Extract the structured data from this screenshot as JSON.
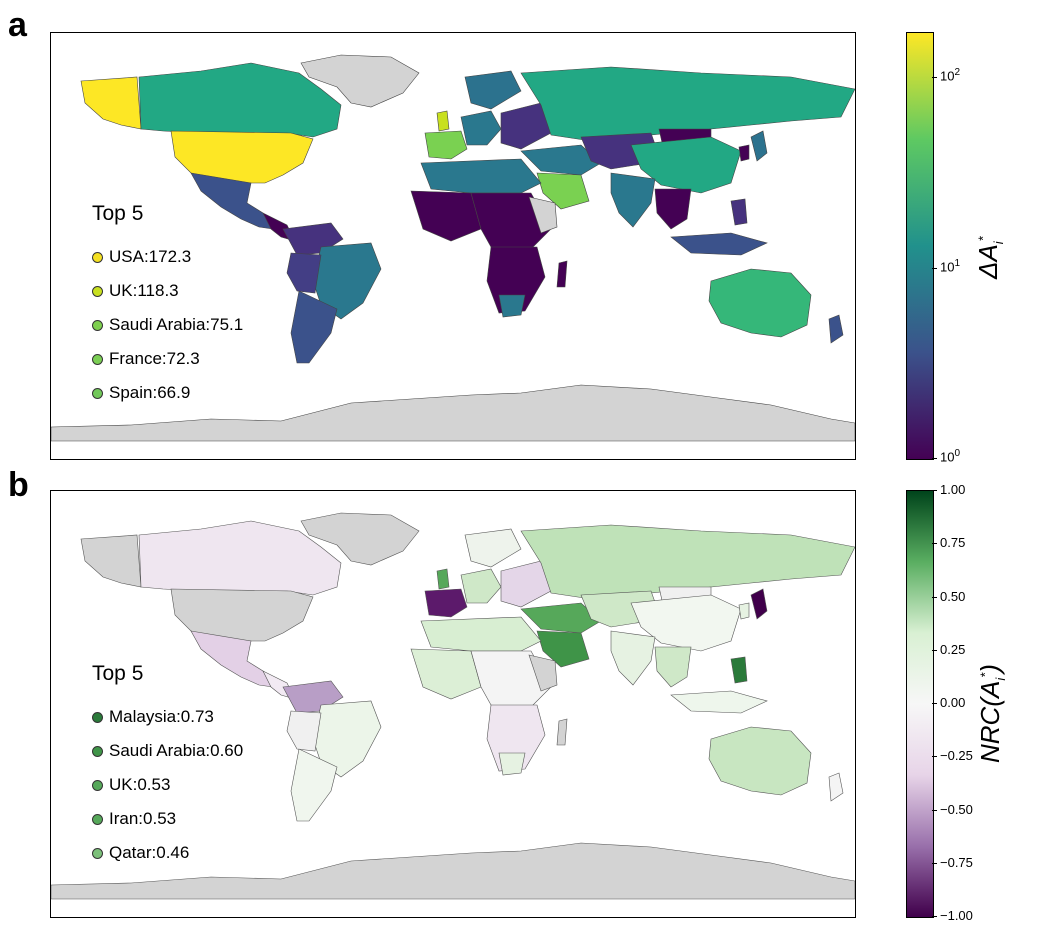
{
  "panels": {
    "a": {
      "letter": "a",
      "legend_title": "Top 5",
      "top5": [
        {
          "label": "USA:172.3",
          "color": "#f4e022"
        },
        {
          "label": "UK:118.3",
          "color": "#c8e020"
        },
        {
          "label": "Saudi Arabia:75.1",
          "color": "#7ecf4f"
        },
        {
          "label": "France:72.3",
          "color": "#7bce54"
        },
        {
          "label": "Spain:66.9",
          "color": "#72c85a"
        }
      ],
      "colorbar": {
        "label_main": "ΔA",
        "label_sub": "i",
        "label_sup": "*",
        "scale": "log",
        "range": [
          1,
          172.3
        ],
        "ticks": [
          {
            "base": "10",
            "exp": "0"
          },
          {
            "base": "10",
            "exp": "1"
          },
          {
            "base": "10",
            "exp": "2"
          }
        ],
        "colormap": "viridis",
        "colors": [
          "#440154",
          "#3b528b",
          "#21918c",
          "#5ec962",
          "#fde725"
        ]
      }
    },
    "b": {
      "letter": "b",
      "legend_title": "Top 5",
      "top5": [
        {
          "label": "Malaysia:0.73",
          "color": "#2a7a3a"
        },
        {
          "label": "Saudi Arabia:0.60",
          "color": "#3f9448"
        },
        {
          "label": "UK:0.53",
          "color": "#56a85a"
        },
        {
          "label": "Iran:0.53",
          "color": "#56a85a"
        },
        {
          "label": "Qatar:0.46",
          "color": "#7cc07a"
        }
      ],
      "colorbar": {
        "label_main": "NRC(A",
        "label_sub": "i",
        "label_sup": "*",
        "label_close": ")",
        "range": [
          -1.0,
          1.0
        ],
        "ticks": [
          "1.00",
          "0.75",
          "0.50",
          "0.25",
          "0.00",
          "−0.25",
          "−0.50",
          "−0.75",
          "−1.00"
        ],
        "colormap": "PRGn",
        "colors": [
          "#00441b",
          "#5aae61",
          "#d9f0d3",
          "#f7f7f7",
          "#e7d4e8",
          "#9970ab",
          "#40004b"
        ]
      }
    }
  },
  "colors": {
    "no_data": "#d3d3d3",
    "border": "#555555"
  }
}
